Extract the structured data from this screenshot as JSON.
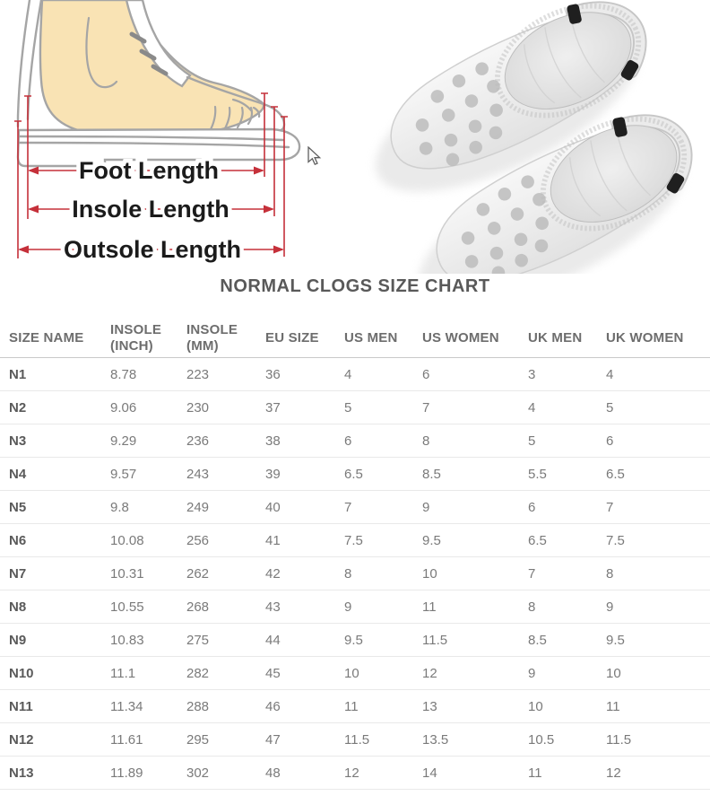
{
  "colors": {
    "dim_line": "#c5303a",
    "foot_fill": "#f9e3b4",
    "outline": "#a5a5a5",
    "label": "#1b1b1b",
    "title_text": "#595959",
    "header_text": "#6d6d6d",
    "cell_text": "#7a7a7a",
    "row_name_text": "#5a5a5a",
    "divider": "#e9e9e9",
    "header_divider": "#c9c9c9"
  },
  "hero": {
    "measurement_diagram": {
      "foot_length_label": "Foot Length",
      "insole_length_label": "Insole Length",
      "outsole_length_label": "Outsole Length"
    },
    "product_photo": {
      "alt": "pair of white perforated clogs viewed from above"
    }
  },
  "chart_data": {
    "type": "table",
    "title": "NORMAL CLOGS SIZE CHART",
    "columns": [
      "SIZE NAME",
      "INSOLE (INCH)",
      "INSOLE (MM)",
      "EU SIZE",
      "US MEN",
      "US WOMEN",
      "UK MEN",
      "UK WOMEN"
    ],
    "rows": [
      [
        "N1",
        "8.78",
        "223",
        "36",
        "4",
        "6",
        "3",
        "4"
      ],
      [
        "N2",
        "9.06",
        "230",
        "37",
        "5",
        "7",
        "4",
        "5"
      ],
      [
        "N3",
        "9.29",
        "236",
        "38",
        "6",
        "8",
        "5",
        "6"
      ],
      [
        "N4",
        "9.57",
        "243",
        "39",
        "6.5",
        "8.5",
        "5.5",
        "6.5"
      ],
      [
        "N5",
        "9.8",
        "249",
        "40",
        "7",
        "9",
        "6",
        "7"
      ],
      [
        "N6",
        "10.08",
        "256",
        "41",
        "7.5",
        "9.5",
        "6.5",
        "7.5"
      ],
      [
        "N7",
        "10.31",
        "262",
        "42",
        "8",
        "10",
        "7",
        "8"
      ],
      [
        "N8",
        "10.55",
        "268",
        "43",
        "9",
        "11",
        "8",
        "9"
      ],
      [
        "N9",
        "10.83",
        "275",
        "44",
        "9.5",
        "11.5",
        "8.5",
        "9.5"
      ],
      [
        "N10",
        "11.1",
        "282",
        "45",
        "10",
        "12",
        "9",
        "10"
      ],
      [
        "N11",
        "11.34",
        "288",
        "46",
        "11",
        "13",
        "10",
        "11"
      ],
      [
        "N12",
        "11.61",
        "295",
        "47",
        "11.5",
        "13.5",
        "10.5",
        "11.5"
      ],
      [
        "N13",
        "11.89",
        "302",
        "48",
        "12",
        "14",
        "11",
        "12"
      ]
    ]
  }
}
